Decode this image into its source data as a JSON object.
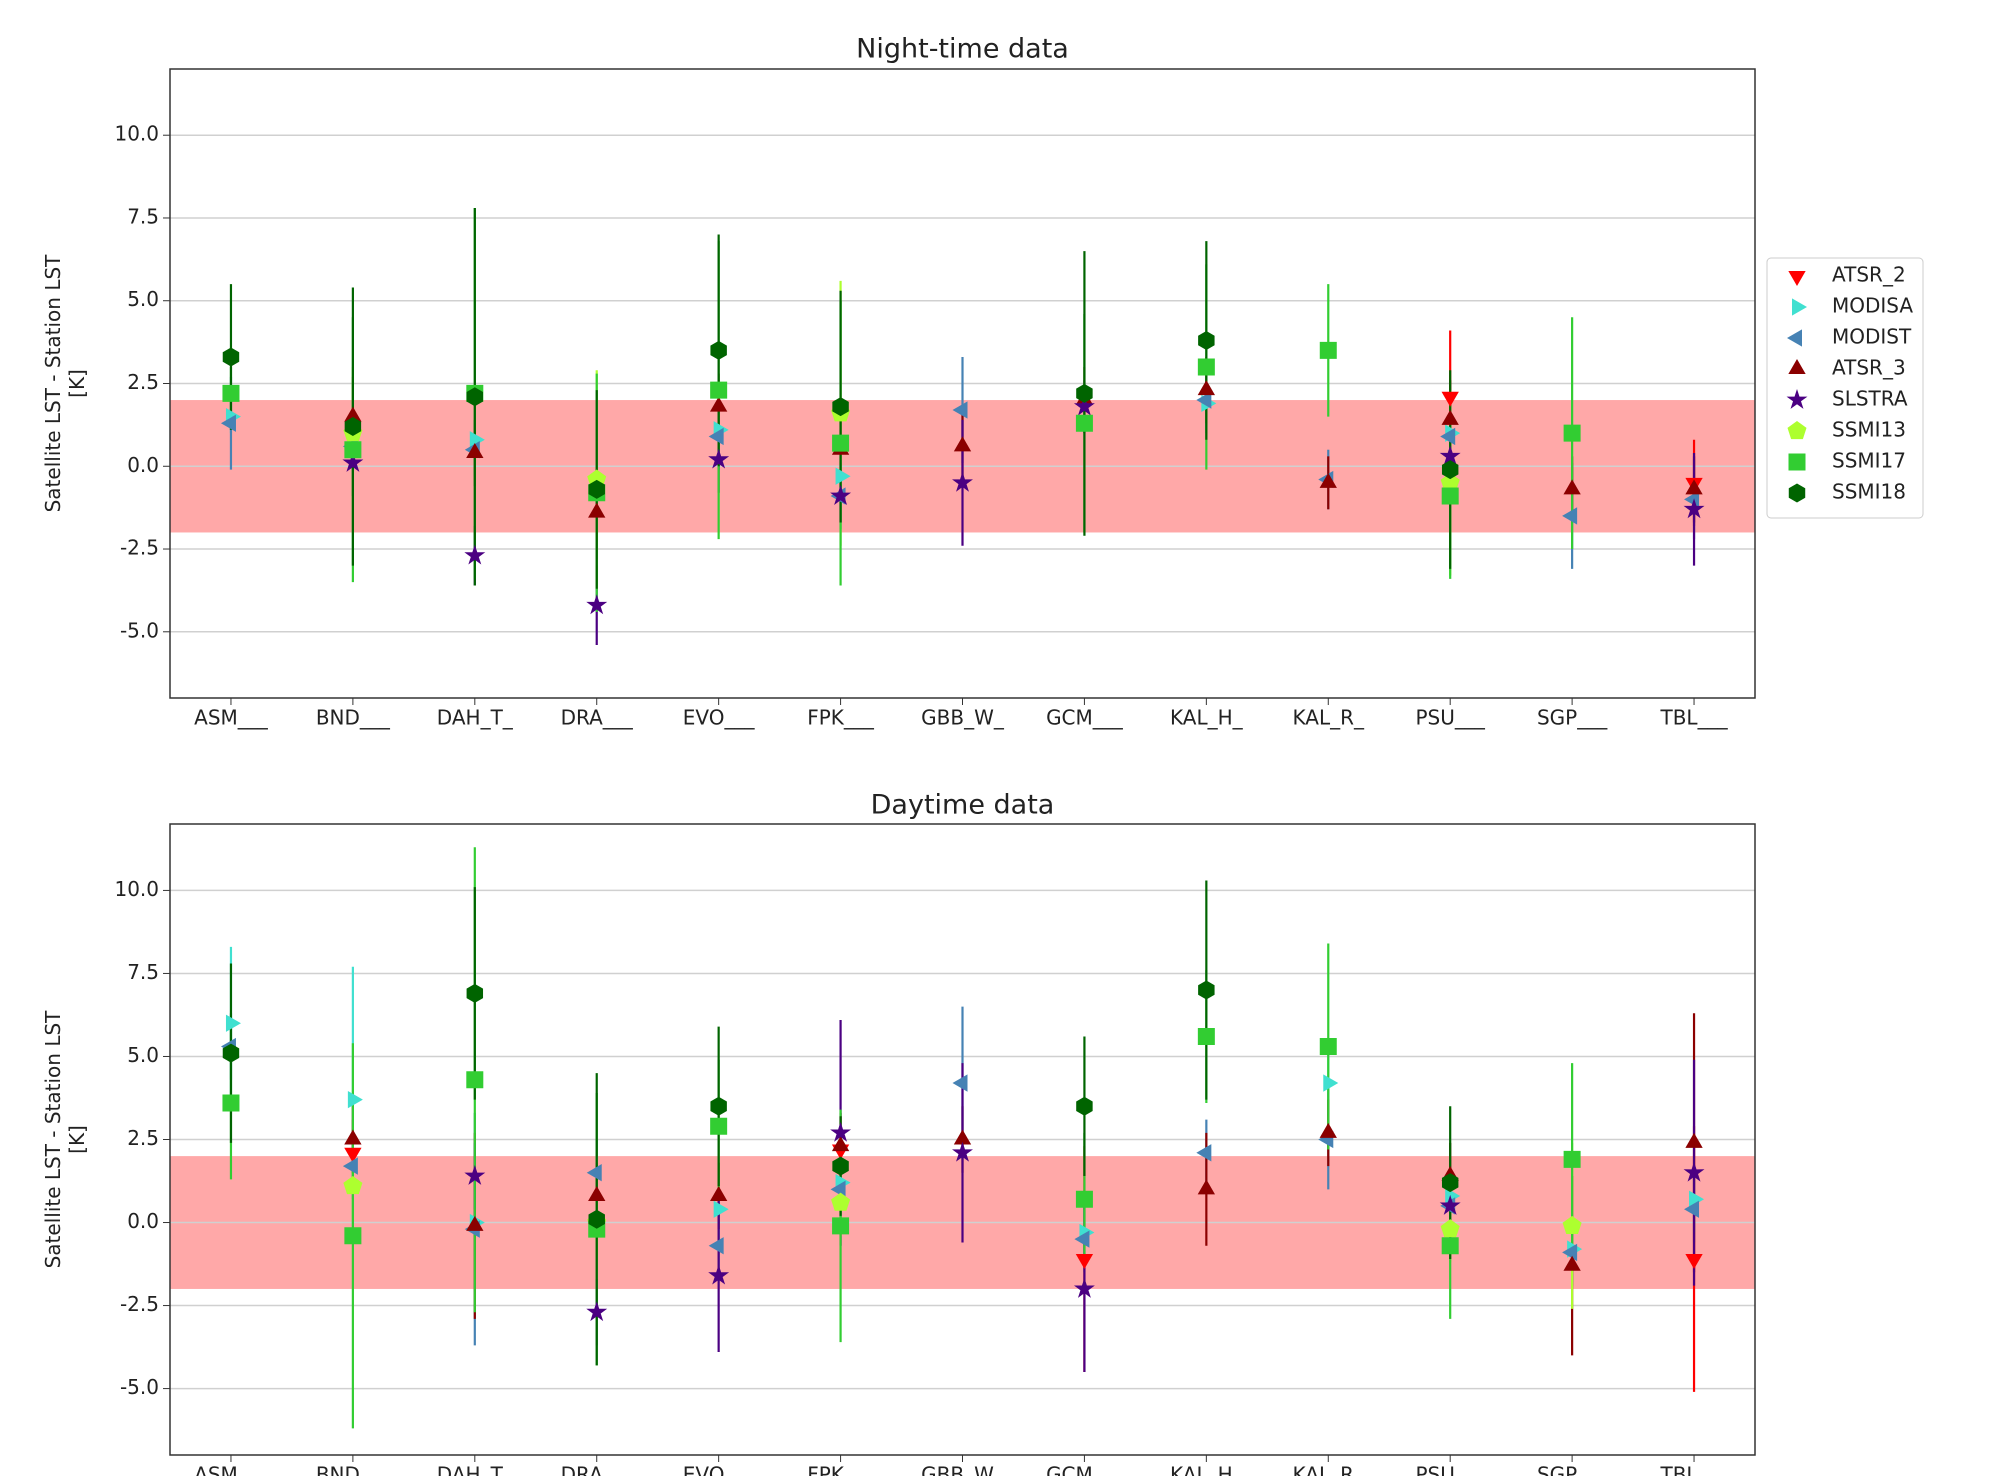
{
  "chart_data": [
    {
      "type": "errorbar",
      "title": "Night-time data",
      "ylabel": [
        "Satellite LST - Station LST",
        "[K]"
      ],
      "categories": [
        "ASM___",
        "BND___",
        "DAH_T_",
        "DRA___",
        "EVO___",
        "FPK___",
        "GBB_W_",
        "GCM___",
        "KAL_H_",
        "KAL_R_",
        "PSU___",
        "SGP___",
        "TBL___"
      ],
      "ylim": [
        -7,
        12
      ],
      "yticks": [
        {
          "value": -5,
          "label": "-5.0"
        },
        {
          "value": -2.5,
          "label": "-2.5"
        },
        {
          "value": 0,
          "label": "0.0"
        },
        2.5,
        {
          "value": 5,
          "label": "5.0"
        },
        7.5,
        {
          "value": 10,
          "label": "10.0"
        }
      ],
      "grid": true,
      "shaded_range": [
        -2,
        2
      ],
      "shaded_color": "#ff9999",
      "legend": "outside right",
      "series": [
        {
          "name": "ATSR_2",
          "color": "#ff0000",
          "marker": "v",
          "values": [
            null,
            null,
            null,
            null,
            null,
            null,
            null,
            null,
            null,
            null,
            2.1,
            null,
            -0.5
          ],
          "errors": [
            null,
            null,
            null,
            null,
            null,
            null,
            null,
            null,
            null,
            null,
            2.0,
            null,
            1.3
          ]
        },
        {
          "name": "MODISA",
          "color": "#40e0d0",
          "marker": ">",
          "values": [
            1.5,
            null,
            0.8,
            null,
            1.1,
            -0.3,
            null,
            null,
            1.9,
            null,
            1.0,
            null,
            null
          ],
          "errors": [
            0.5,
            null,
            0.6,
            null,
            0.6,
            1.0,
            null,
            null,
            0.8,
            null,
            0.8,
            null,
            null
          ]
        },
        {
          "name": "MODIST",
          "color": "#4682b4",
          "marker": "<",
          "values": [
            1.3,
            0.6,
            0.5,
            null,
            0.9,
            -0.9,
            1.7,
            null,
            2.0,
            -0.4,
            0.9,
            -1.5,
            -1.0
          ],
          "errors": [
            1.4,
            1.0,
            0.8,
            null,
            1.0,
            1.0,
            1.6,
            null,
            1.0,
            0.9,
            1.0,
            1.6,
            1.2
          ]
        },
        {
          "name": "ATSR_3",
          "color": "#8b0000",
          "marker": "^",
          "values": [
            null,
            1.5,
            0.4,
            -1.4,
            1.8,
            0.5,
            0.6,
            2.0,
            2.3,
            -0.5,
            1.4,
            -0.7,
            -0.7
          ],
          "errors": [
            null,
            1.2,
            1.0,
            1.4,
            1.0,
            1.0,
            1.0,
            1.0,
            1.0,
            0.8,
            1.2,
            1.0,
            1.0
          ]
        },
        {
          "name": "SLSTRA",
          "color": "#4b0082",
          "marker": "*",
          "values": [
            null,
            0.1,
            -2.7,
            -4.2,
            0.2,
            -0.9,
            -0.5,
            1.8,
            null,
            null,
            0.3,
            null,
            -1.3
          ],
          "errors": [
            null,
            1.0,
            0.9,
            1.2,
            1.0,
            0.8,
            1.9,
            0.8,
            null,
            null,
            1.0,
            null,
            1.7
          ]
        },
        {
          "name": "SSMI13",
          "color": "#adff2f",
          "marker": "p",
          "values": [
            null,
            1.0,
            null,
            -0.4,
            null,
            1.6,
            null,
            null,
            null,
            null,
            -0.5,
            null,
            null
          ],
          "errors": [
            null,
            2.0,
            null,
            3.3,
            null,
            4.0,
            null,
            null,
            null,
            null,
            2.8,
            null,
            null
          ]
        },
        {
          "name": "SSMI17",
          "color": "#32cd32",
          "marker": "s",
          "values": [
            2.2,
            0.5,
            2.2,
            -0.8,
            2.3,
            0.7,
            null,
            1.3,
            3.0,
            3.5,
            -0.9,
            1.0,
            null
          ],
          "errors": [
            0.8,
            4.0,
            5.6,
            3.6,
            4.5,
            4.3,
            null,
            3.3,
            3.1,
            2.0,
            2.5,
            3.5,
            null
          ]
        },
        {
          "name": "SSMI18",
          "color": "#006400",
          "marker": "h",
          "values": [
            3.3,
            1.2,
            2.1,
            -0.7,
            3.5,
            1.8,
            null,
            2.2,
            3.8,
            null,
            -0.1,
            null,
            null
          ],
          "errors": [
            2.2,
            4.2,
            5.7,
            3.0,
            3.5,
            3.5,
            null,
            4.3,
            3.0,
            null,
            3.0,
            null,
            null
          ]
        }
      ]
    },
    {
      "type": "errorbar",
      "title": "Daytime data",
      "ylabel": [
        "Satellite LST - Station LST",
        "[K]"
      ],
      "categories": [
        "ASM___",
        "BND___",
        "DAH_T_",
        "DRA___",
        "EVO___",
        "FPK___",
        "GBB_W_",
        "GCM___",
        "KAL_H_",
        "KAL_R_",
        "PSU___",
        "SGP___",
        "TBL___"
      ],
      "ylim": [
        -7,
        12
      ],
      "yticks": [
        {
          "value": -5,
          "label": "-5.0"
        },
        {
          "value": -2.5,
          "label": "-2.5"
        },
        {
          "value": 0,
          "label": "0.0"
        },
        2.5,
        {
          "value": 5,
          "label": "5.0"
        },
        7.5,
        {
          "value": 10,
          "label": "10.0"
        }
      ],
      "grid": true,
      "shaded_range": [
        -2,
        2
      ],
      "shaded_color": "#ff9999",
      "series": [
        {
          "values": [
            null,
            2.1,
            null,
            null,
            null,
            2.2,
            null,
            -1.1,
            null,
            null,
            null,
            null,
            -1.1
          ],
          "errors": [
            null,
            1.0,
            null,
            null,
            null,
            1.0,
            null,
            3.4,
            null,
            null,
            null,
            null,
            4.0
          ]
        },
        {
          "values": [
            6.0,
            3.7,
            0.0,
            null,
            0.4,
            1.2,
            null,
            -0.3,
            null,
            4.2,
            0.8,
            -0.8,
            0.7
          ],
          "errors": [
            2.3,
            4.0,
            1.0,
            null,
            1.0,
            1.0,
            null,
            1.0,
            null,
            1.0,
            0.8,
            1.0,
            1.0
          ]
        },
        {
          "values": [
            5.3,
            1.7,
            -0.2,
            1.5,
            -0.7,
            1.0,
            4.2,
            -0.5,
            2.1,
            2.5,
            0.5,
            -0.9,
            0.4
          ],
          "errors": [
            1.0,
            1.0,
            3.5,
            1.0,
            1.0,
            1.0,
            2.3,
            1.0,
            1.0,
            1.5,
            1.0,
            1.0,
            1.0
          ]
        },
        {
          "values": [
            null,
            2.5,
            -0.1,
            0.8,
            0.8,
            2.3,
            2.5,
            null,
            1.0,
            2.7,
            1.4,
            -1.3,
            2.4
          ],
          "errors": [
            null,
            1.0,
            2.8,
            1.0,
            1.0,
            1.0,
            1.0,
            null,
            1.7,
            1.0,
            1.0,
            2.7,
            3.9
          ]
        },
        {
          "values": [
            null,
            null,
            1.4,
            -2.7,
            -1.6,
            2.7,
            2.1,
            -2.0,
            null,
            null,
            0.5,
            null,
            1.5
          ],
          "errors": [
            null,
            null,
            1.0,
            1.0,
            2.3,
            3.4,
            2.7,
            2.5,
            null,
            null,
            1.0,
            null,
            3.4
          ]
        },
        {
          "values": [
            null,
            1.1,
            null,
            0.0,
            null,
            0.6,
            null,
            null,
            null,
            null,
            -0.2,
            -0.1,
            null
          ],
          "errors": [
            null,
            1.0,
            null,
            1.0,
            null,
            1.0,
            null,
            null,
            null,
            null,
            1.0,
            2.5,
            null
          ]
        },
        {
          "values": [
            3.6,
            -0.4,
            4.3,
            -0.2,
            2.9,
            -0.1,
            null,
            0.7,
            5.6,
            5.3,
            -0.7,
            1.9,
            null
          ],
          "errors": [
            2.3,
            5.8,
            7.0,
            4.1,
            2.0,
            3.5,
            null,
            2.0,
            2.0,
            3.1,
            2.2,
            2.9,
            null
          ]
        },
        {
          "values": [
            5.1,
            null,
            6.9,
            0.1,
            3.5,
            1.7,
            null,
            3.5,
            7.0,
            null,
            1.2,
            null,
            null
          ],
          "errors": [
            2.7,
            null,
            3.2,
            4.4,
            2.4,
            1.5,
            null,
            2.1,
            3.3,
            null,
            2.3,
            null,
            null
          ]
        }
      ]
    }
  ]
}
